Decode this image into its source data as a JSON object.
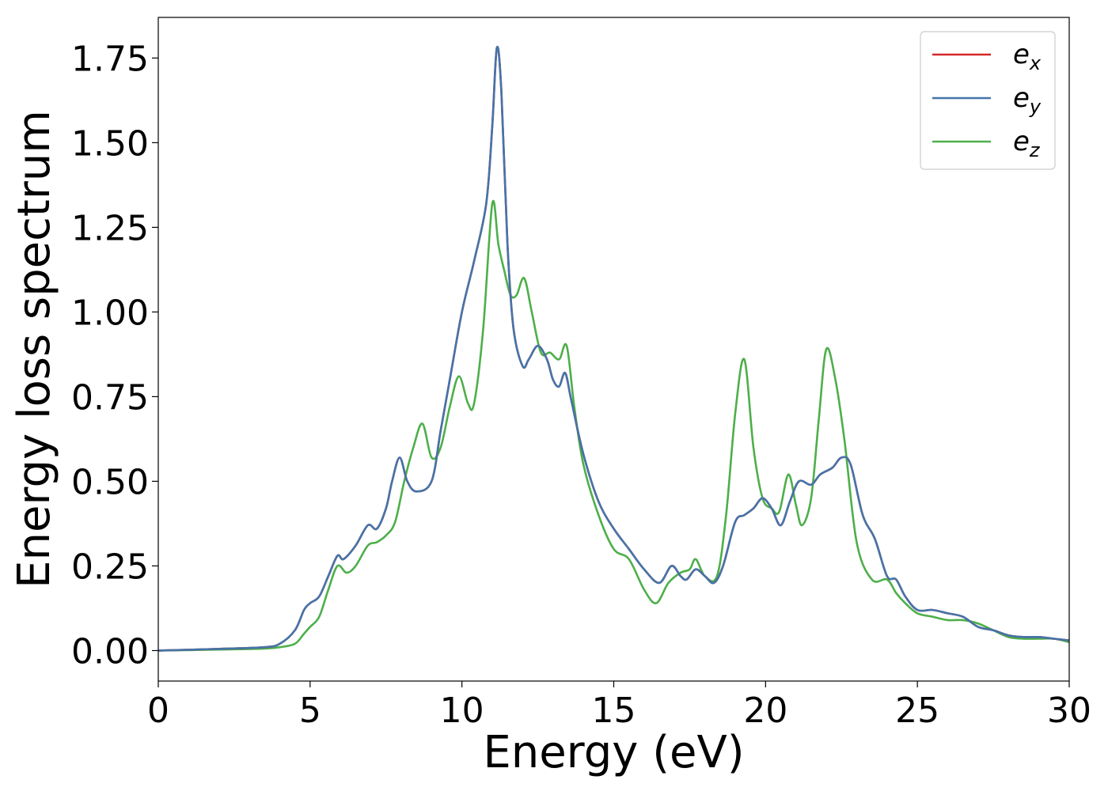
{
  "chart_data": {
    "type": "line",
    "xlabel": "Energy (eV)",
    "ylabel": "Energy loss spectrum",
    "xlim": [
      0,
      30
    ],
    "ylim": [
      -0.09,
      1.87
    ],
    "xticks": [
      0,
      5,
      10,
      15,
      20,
      25,
      30
    ],
    "xtick_labels": [
      "0",
      "5",
      "10",
      "15",
      "20",
      "25",
      "30"
    ],
    "yticks": [
      0,
      0.25,
      0.5,
      0.75,
      1.0,
      1.25,
      1.5,
      1.75
    ],
    "ytick_labels": [
      "0.00",
      "0.25",
      "0.50",
      "0.75",
      "1.00",
      "1.25",
      "1.50",
      "1.75"
    ],
    "grid": false,
    "legend_position": "top-right",
    "series": [
      {
        "name": "e_x",
        "label_base": "e",
        "label_sub": "x",
        "color": "#d62728",
        "x": [
          0,
          2,
          3.5,
          4.0,
          4.5,
          4.8,
          5.0,
          5.3,
          5.6,
          5.9,
          6.1,
          6.5,
          6.9,
          7.2,
          7.5,
          7.7,
          7.95,
          8.2,
          8.5,
          9.0,
          9.3,
          9.6,
          10.0,
          10.4,
          10.8,
          11.0,
          11.15,
          11.3,
          11.5,
          11.7,
          12.0,
          12.2,
          12.5,
          12.8,
          13.0,
          13.2,
          13.4,
          13.6,
          14.0,
          14.5,
          15.0,
          15.5,
          16.0,
          16.5,
          16.9,
          17.2,
          17.4,
          17.7,
          18.0,
          18.3,
          18.6,
          19.0,
          19.3,
          19.6,
          19.9,
          20.2,
          20.5,
          20.8,
          21.1,
          21.5,
          21.8,
          22.2,
          22.5,
          22.8,
          23.2,
          23.6,
          24.0,
          24.3,
          24.6,
          25.0,
          25.5,
          26.0,
          26.5,
          27.0,
          27.5,
          28.0,
          28.5,
          29.0,
          29.5,
          30.0
        ],
        "y": [
          0.0,
          0.005,
          0.01,
          0.02,
          0.06,
          0.12,
          0.14,
          0.16,
          0.22,
          0.28,
          0.27,
          0.31,
          0.37,
          0.36,
          0.42,
          0.5,
          0.57,
          0.5,
          0.47,
          0.5,
          0.65,
          0.8,
          1.0,
          1.15,
          1.32,
          1.55,
          1.78,
          1.65,
          1.2,
          0.95,
          0.84,
          0.86,
          0.9,
          0.86,
          0.8,
          0.78,
          0.82,
          0.74,
          0.58,
          0.44,
          0.36,
          0.3,
          0.24,
          0.2,
          0.25,
          0.22,
          0.21,
          0.24,
          0.22,
          0.2,
          0.25,
          0.38,
          0.4,
          0.42,
          0.45,
          0.42,
          0.37,
          0.44,
          0.5,
          0.49,
          0.52,
          0.54,
          0.57,
          0.55,
          0.4,
          0.33,
          0.22,
          0.21,
          0.16,
          0.12,
          0.12,
          0.11,
          0.1,
          0.07,
          0.06,
          0.045,
          0.04,
          0.04,
          0.035,
          0.03
        ]
      },
      {
        "name": "e_y",
        "label_base": "e",
        "label_sub": "y",
        "color": "#4474a9",
        "x": [
          0,
          2,
          3.5,
          4.0,
          4.5,
          4.8,
          5.0,
          5.3,
          5.6,
          5.9,
          6.1,
          6.5,
          6.9,
          7.2,
          7.5,
          7.7,
          7.95,
          8.2,
          8.5,
          9.0,
          9.3,
          9.6,
          10.0,
          10.4,
          10.8,
          11.0,
          11.15,
          11.3,
          11.5,
          11.7,
          12.0,
          12.2,
          12.5,
          12.8,
          13.0,
          13.2,
          13.4,
          13.6,
          14.0,
          14.5,
          15.0,
          15.5,
          16.0,
          16.5,
          16.9,
          17.2,
          17.4,
          17.7,
          18.0,
          18.3,
          18.6,
          19.0,
          19.3,
          19.6,
          19.9,
          20.2,
          20.5,
          20.8,
          21.1,
          21.5,
          21.8,
          22.2,
          22.5,
          22.8,
          23.2,
          23.6,
          24.0,
          24.3,
          24.6,
          25.0,
          25.5,
          26.0,
          26.5,
          27.0,
          27.5,
          28.0,
          28.5,
          29.0,
          29.5,
          30.0
        ],
        "y": [
          0.0,
          0.005,
          0.01,
          0.02,
          0.06,
          0.12,
          0.14,
          0.16,
          0.22,
          0.28,
          0.27,
          0.31,
          0.37,
          0.36,
          0.42,
          0.5,
          0.57,
          0.5,
          0.47,
          0.5,
          0.65,
          0.8,
          1.0,
          1.15,
          1.32,
          1.55,
          1.78,
          1.65,
          1.2,
          0.95,
          0.84,
          0.86,
          0.9,
          0.86,
          0.8,
          0.78,
          0.82,
          0.74,
          0.58,
          0.44,
          0.36,
          0.3,
          0.24,
          0.2,
          0.25,
          0.22,
          0.21,
          0.24,
          0.22,
          0.2,
          0.25,
          0.38,
          0.4,
          0.42,
          0.45,
          0.42,
          0.37,
          0.44,
          0.5,
          0.49,
          0.52,
          0.54,
          0.57,
          0.55,
          0.4,
          0.33,
          0.22,
          0.21,
          0.16,
          0.12,
          0.12,
          0.11,
          0.1,
          0.07,
          0.06,
          0.045,
          0.04,
          0.04,
          0.035,
          0.03
        ]
      },
      {
        "name": "e_z",
        "label_base": "e",
        "label_sub": "z",
        "color": "#4daf4a",
        "x": [
          0,
          2,
          3.5,
          4.0,
          4.5,
          4.8,
          5.0,
          5.3,
          5.6,
          5.9,
          6.2,
          6.5,
          6.9,
          7.2,
          7.5,
          7.8,
          8.1,
          8.4,
          8.7,
          9.0,
          9.3,
          9.6,
          9.9,
          10.2,
          10.4,
          10.7,
          11.0,
          11.2,
          11.4,
          11.6,
          11.8,
          12.05,
          12.3,
          12.6,
          12.9,
          13.2,
          13.45,
          13.7,
          14.0,
          14.5,
          15.0,
          15.5,
          16.0,
          16.4,
          16.8,
          17.2,
          17.5,
          17.7,
          18.0,
          18.4,
          18.7,
          19.0,
          19.3,
          19.6,
          19.9,
          20.2,
          20.45,
          20.75,
          21.0,
          21.2,
          21.5,
          21.75,
          22.0,
          22.3,
          22.6,
          23.0,
          23.5,
          24.0,
          24.3,
          24.6,
          25.0,
          25.5,
          26.0,
          26.5,
          27.0,
          27.5,
          28.0,
          28.5,
          29.0,
          29.5,
          30.0
        ],
        "y": [
          0.0,
          0.003,
          0.006,
          0.01,
          0.02,
          0.05,
          0.07,
          0.1,
          0.18,
          0.25,
          0.23,
          0.25,
          0.31,
          0.32,
          0.34,
          0.38,
          0.5,
          0.6,
          0.67,
          0.57,
          0.6,
          0.72,
          0.81,
          0.73,
          0.73,
          0.95,
          1.32,
          1.2,
          1.12,
          1.05,
          1.05,
          1.1,
          1.0,
          0.88,
          0.88,
          0.86,
          0.9,
          0.72,
          0.55,
          0.4,
          0.3,
          0.27,
          0.18,
          0.14,
          0.2,
          0.23,
          0.24,
          0.27,
          0.22,
          0.22,
          0.4,
          0.7,
          0.86,
          0.6,
          0.45,
          0.42,
          0.41,
          0.52,
          0.43,
          0.37,
          0.45,
          0.68,
          0.89,
          0.8,
          0.62,
          0.32,
          0.21,
          0.21,
          0.17,
          0.14,
          0.11,
          0.1,
          0.09,
          0.09,
          0.08,
          0.06,
          0.04,
          0.035,
          0.035,
          0.035,
          0.025
        ]
      }
    ]
  }
}
